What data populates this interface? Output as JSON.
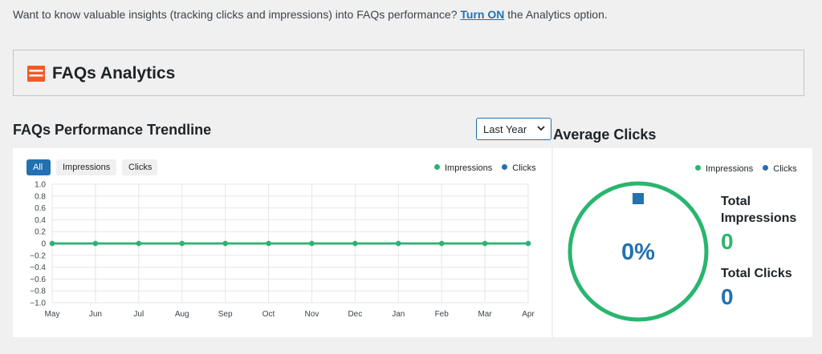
{
  "notice": {
    "text_before": "Want to know valuable insights (tracking clicks and impressions) into FAQs performance? ",
    "link": "Turn ON",
    "text_after": " the Analytics option."
  },
  "header": {
    "title": "FAQs Analytics",
    "logo_icon": "faq-analytics-logo-icon"
  },
  "trend": {
    "title": "FAQs Performance Trendline",
    "period_select": {
      "value": "Last Year"
    },
    "tabs": [
      {
        "label": "All",
        "active": true
      },
      {
        "label": "Impressions",
        "active": false
      },
      {
        "label": "Clicks",
        "active": false
      }
    ],
    "legend": [
      {
        "label": "Impressions",
        "color": "#2ab56e"
      },
      {
        "label": "Clicks",
        "color": "#2271b1"
      }
    ]
  },
  "average": {
    "title": "Average Clicks",
    "legend": [
      {
        "label": "Impressions",
        "color": "#2ab56e"
      },
      {
        "label": "Clicks",
        "color": "#2271b1"
      }
    ],
    "percent": "0%",
    "total_impressions_label_1": "Total",
    "total_impressions_label_2": "Impressions",
    "total_impressions_value": "0",
    "total_clicks_label": "Total Clicks",
    "total_clicks_value": "0",
    "colors": {
      "impressions": "#2ab56e",
      "clicks": "#2271b1"
    }
  },
  "chart_data": {
    "type": "line",
    "categories": [
      "May",
      "Jun",
      "Jul",
      "Aug",
      "Sep",
      "Oct",
      "Nov",
      "Dec",
      "Jan",
      "Feb",
      "Mar",
      "Apr"
    ],
    "series": [
      {
        "name": "Impressions",
        "values": [
          0,
          0,
          0,
          0,
          0,
          0,
          0,
          0,
          0,
          0,
          0,
          0
        ],
        "color": "#2ab56e"
      },
      {
        "name": "Clicks",
        "values": [
          0,
          0,
          0,
          0,
          0,
          0,
          0,
          0,
          0,
          0,
          0,
          0
        ],
        "color": "#2271b1"
      }
    ],
    "yticks": [
      "1.0",
      "0.8",
      "0.6",
      "0.4",
      "0.2",
      "0",
      "−0.2",
      "−0.4",
      "−0.6",
      "−0.8",
      "−1.0"
    ],
    "ylim": [
      -1,
      1
    ],
    "grid": true,
    "legend_position": "top-right"
  }
}
